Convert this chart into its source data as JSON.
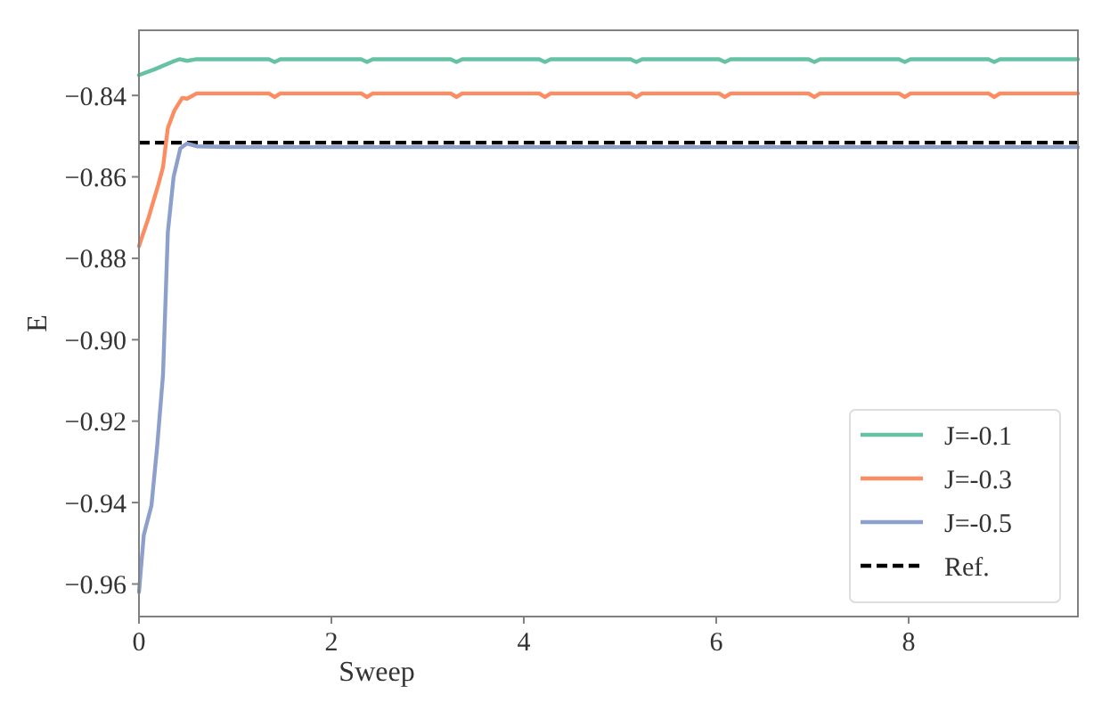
{
  "chart_data": {
    "type": "line",
    "xlabel": "Sweep",
    "ylabel": "E",
    "xlim": [
      0,
      9.76
    ],
    "ylim": [
      -0.968,
      -0.824
    ],
    "xticks": [
      0,
      2,
      4,
      6,
      8
    ],
    "yticks": [
      {
        "value": -0.96,
        "label": "−0.96"
      },
      {
        "value": -0.94,
        "label": "−0.94"
      },
      {
        "value": -0.92,
        "label": "−0.92"
      },
      {
        "value": -0.9,
        "label": "−0.90"
      },
      {
        "value": -0.88,
        "label": "−0.88"
      },
      {
        "value": -0.86,
        "label": "−0.86"
      },
      {
        "value": -0.84,
        "label": "−0.84"
      }
    ],
    "series": [
      {
        "name": "J=-0.1",
        "color": "#66c2a5",
        "x": [
          0,
          0.16,
          0.35,
          0.42,
          0.5,
          0.6,
          1.35,
          1.41,
          1.47,
          2.31,
          2.37,
          2.43,
          3.24,
          3.3,
          3.36,
          4.16,
          4.22,
          4.28,
          5.11,
          5.17,
          5.23,
          6.03,
          6.09,
          6.15,
          6.96,
          7.02,
          7.08,
          7.9,
          7.96,
          8.02,
          8.83,
          8.89,
          8.95,
          9.76
        ],
        "values": [
          -0.835,
          -0.8336,
          -0.8317,
          -0.8311,
          -0.8315,
          -0.8311,
          -0.8311,
          -0.8318,
          -0.8311,
          -0.8311,
          -0.8318,
          -0.8311,
          -0.8311,
          -0.8318,
          -0.8311,
          -0.8311,
          -0.8318,
          -0.8311,
          -0.8311,
          -0.8318,
          -0.8311,
          -0.8311,
          -0.8318,
          -0.8311,
          -0.8311,
          -0.8318,
          -0.8311,
          -0.8311,
          -0.8318,
          -0.8311,
          -0.8311,
          -0.8318,
          -0.8311,
          -0.8311
        ]
      },
      {
        "name": "J=-0.3",
        "color": "#fc8d62",
        "x": [
          0,
          0.1,
          0.2,
          0.25,
          0.3,
          0.37,
          0.45,
          0.5,
          0.6,
          1.35,
          1.41,
          1.47,
          2.31,
          2.37,
          2.43,
          3.24,
          3.3,
          3.36,
          4.16,
          4.22,
          4.28,
          5.11,
          5.17,
          5.23,
          6.03,
          6.09,
          6.15,
          6.96,
          7.02,
          7.08,
          7.9,
          7.96,
          8.02,
          8.83,
          8.89,
          8.95,
          9.76
        ],
        "values": [
          -0.877,
          -0.87,
          -0.862,
          -0.8576,
          -0.848,
          -0.8436,
          -0.8406,
          -0.8408,
          -0.8395,
          -0.8395,
          -0.8404,
          -0.8395,
          -0.8395,
          -0.8404,
          -0.8395,
          -0.8395,
          -0.8404,
          -0.8395,
          -0.8395,
          -0.8404,
          -0.8395,
          -0.8395,
          -0.8404,
          -0.8395,
          -0.8395,
          -0.8404,
          -0.8395,
          -0.8395,
          -0.8404,
          -0.8395,
          -0.8395,
          -0.8404,
          -0.8395,
          -0.8395,
          -0.8404,
          -0.8395,
          -0.8395
        ]
      },
      {
        "name": "J=-0.5",
        "color": "#8da0cb",
        "x": [
          0,
          0.05,
          0.13,
          0.19,
          0.25,
          0.3,
          0.36,
          0.43,
          0.5,
          0.6,
          1,
          9.76
        ],
        "values": [
          -0.962,
          -0.948,
          -0.9407,
          -0.926,
          -0.9086,
          -0.8736,
          -0.86,
          -0.853,
          -0.8518,
          -0.8525,
          -0.8527,
          -0.8527
        ]
      }
    ],
    "ref_lines": [
      {
        "axis": "y",
        "value": -0.8516,
        "label": "Ref.",
        "color": "#000000",
        "line_style": "dashed"
      }
    ],
    "legend": "bottom right",
    "grid": false,
    "marker": "none",
    "line_style": "solid"
  }
}
